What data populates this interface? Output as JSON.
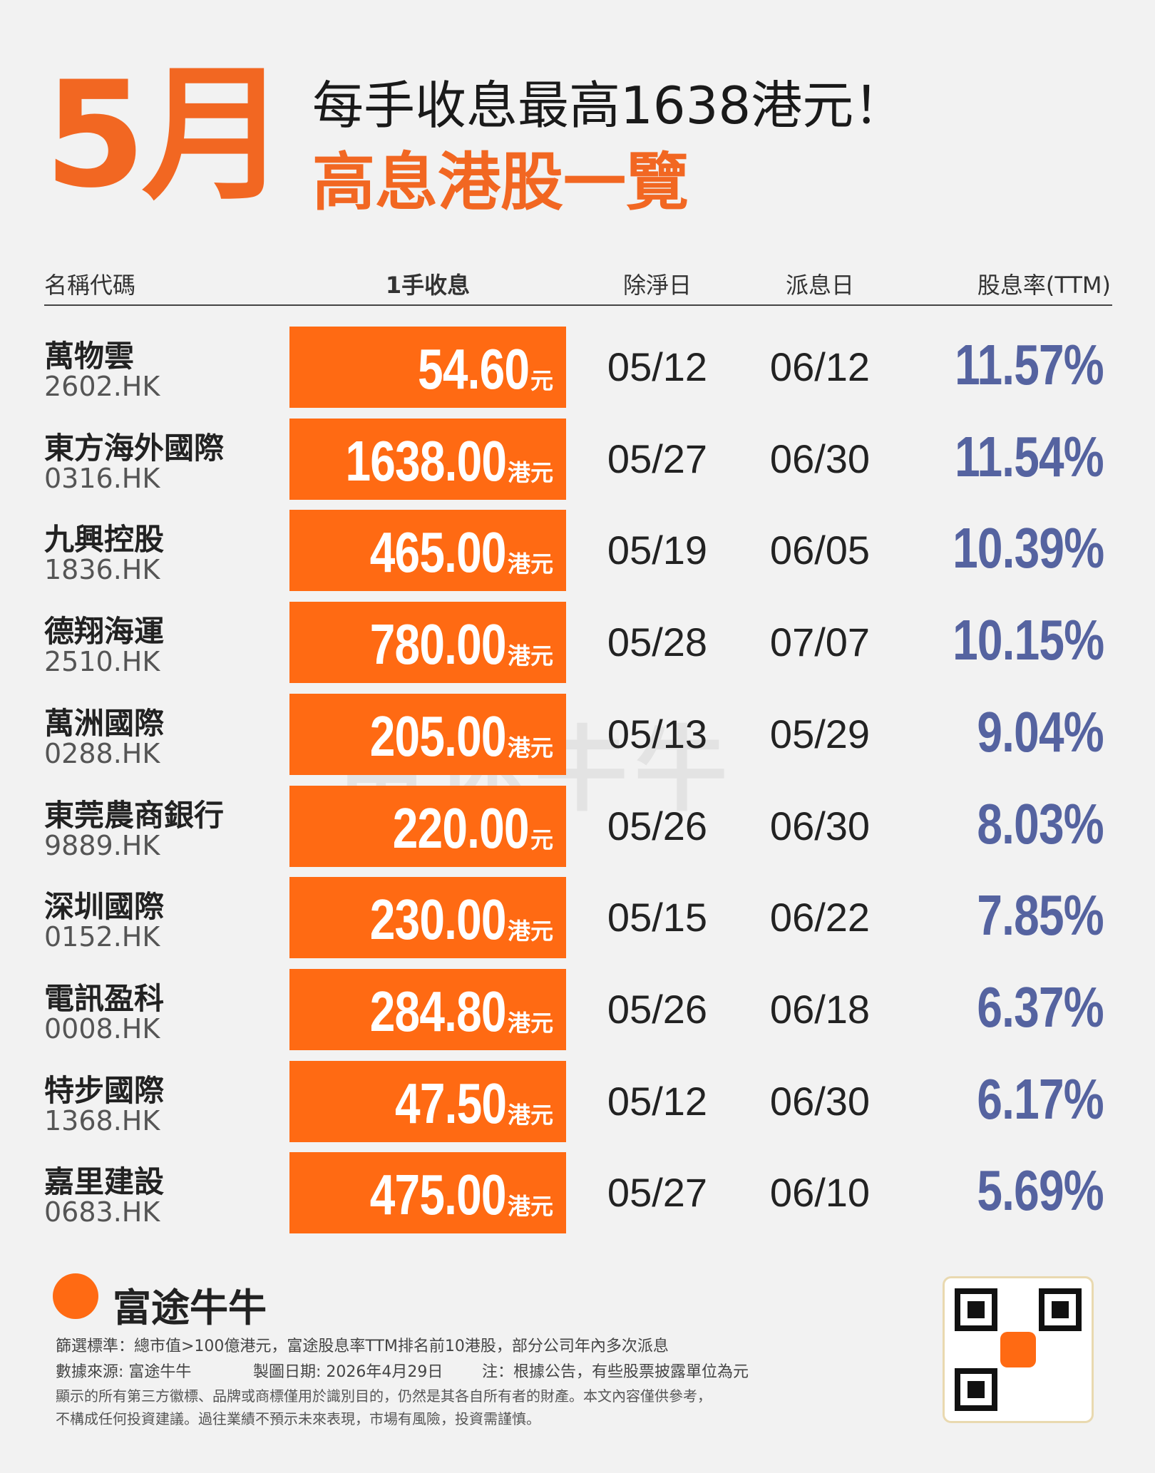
{
  "header": {
    "month": "5月",
    "line1": "每手收息最高1638港元！",
    "line2": "高息港股一覽"
  },
  "table": {
    "columns": [
      "名稱代碼",
      "1手收息",
      "除淨日",
      "派息日",
      "股息率(TTM)"
    ],
    "rows": [
      {
        "name": "萬物雲",
        "code": "2602.HK",
        "dividend": "54.60",
        "unit": "元",
        "ex_date": "05/12",
        "pay_date": "06/12",
        "yield": "11.57%"
      },
      {
        "name": "東方海外國際",
        "code": "0316.HK",
        "dividend": "1638.00",
        "unit": "港元",
        "ex_date": "05/27",
        "pay_date": "06/30",
        "yield": "11.54%"
      },
      {
        "name": "九興控股",
        "code": "1836.HK",
        "dividend": "465.00",
        "unit": "港元",
        "ex_date": "05/19",
        "pay_date": "06/05",
        "yield": "10.39%"
      },
      {
        "name": "德翔海運",
        "code": "2510.HK",
        "dividend": "780.00",
        "unit": "港元",
        "ex_date": "05/28",
        "pay_date": "07/07",
        "yield": "10.15%"
      },
      {
        "name": "萬洲國際",
        "code": "0288.HK",
        "dividend": "205.00",
        "unit": "港元",
        "ex_date": "05/13",
        "pay_date": "05/29",
        "yield": "9.04%"
      },
      {
        "name": "東莞農商銀行",
        "code": "9889.HK",
        "dividend": "220.00",
        "unit": "元",
        "ex_date": "05/26",
        "pay_date": "06/30",
        "yield": "8.03%"
      },
      {
        "name": "深圳國際",
        "code": "0152.HK",
        "dividend": "230.00",
        "unit": "港元",
        "ex_date": "05/15",
        "pay_date": "06/22",
        "yield": "7.85%"
      },
      {
        "name": "電訊盈科",
        "code": "0008.HK",
        "dividend": "284.80",
        "unit": "港元",
        "ex_date": "05/26",
        "pay_date": "06/18",
        "yield": "6.37%"
      },
      {
        "name": "特步國際",
        "code": "1368.HK",
        "dividend": "47.50",
        "unit": "港元",
        "ex_date": "05/12",
        "pay_date": "06/30",
        "yield": "6.17%"
      },
      {
        "name": "嘉里建設",
        "code": "0683.HK",
        "dividend": "475.00",
        "unit": "港元",
        "ex_date": "05/27",
        "pay_date": "06/10",
        "yield": "5.69%"
      }
    ]
  },
  "footer": {
    "brand": "富途牛牛",
    "criteria": "篩選標準：總市值>100億港元，富途股息率TTM排名前10港股，部分公司年內多次派息",
    "source": "數據來源: 富途牛牛",
    "date": "製圖日期: 2026年4月29日",
    "note": "注：根據公告，有些股票披露單位為元",
    "disclaimer1": "顯示的所有第三方徽標、品牌或商標僅用於識別目的，仍然是其各自所有者的財產。本文內容僅供參考，",
    "disclaimer2": "不構成任何投資建議。過往業績不預示未來表現，市場有風險，投資需謹慎。"
  }
}
